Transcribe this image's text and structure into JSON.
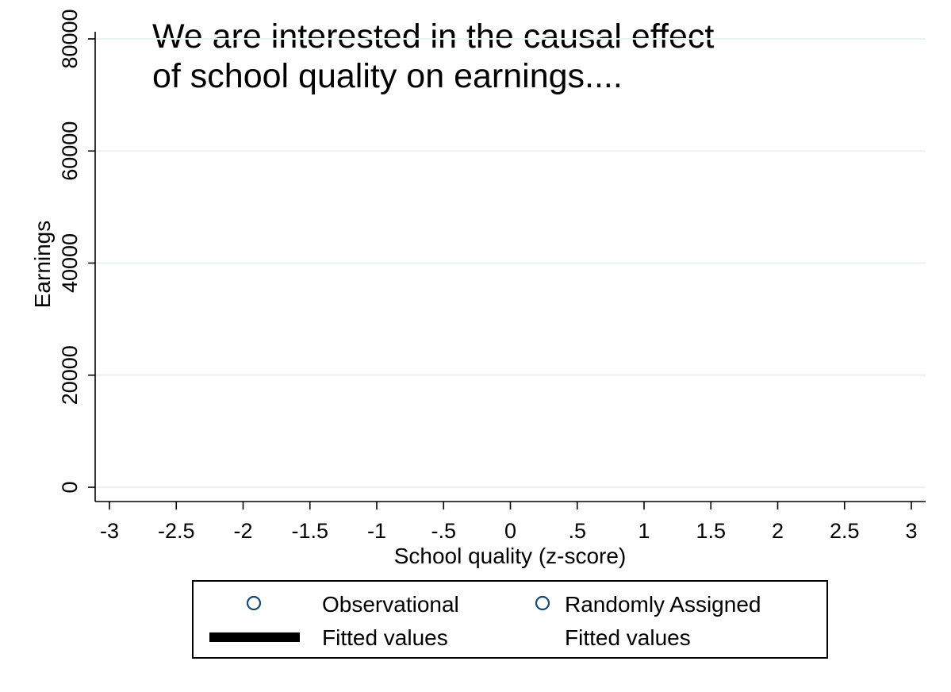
{
  "chart_data": {
    "type": "scatter",
    "title_lines": [
      "We are interested in the causal effect",
      "of school quality on earnings...."
    ],
    "xlabel": "School quality (z-score)",
    "ylabel": "Earnings",
    "xlim": [
      -3,
      3
    ],
    "ylim": [
      0,
      80000
    ],
    "xticks": [
      -3,
      -2.5,
      -2,
      -1.5,
      -1,
      -0.5,
      0,
      0.5,
      1,
      1.5,
      2,
      2.5,
      3
    ],
    "xtick_labels": [
      "-3",
      "-2.5",
      "-2",
      "-1.5",
      "-1",
      "-.5",
      "0",
      ".5",
      "1",
      "1.5",
      "2",
      "2.5",
      "3"
    ],
    "yticks": [
      0,
      20000,
      40000,
      60000,
      80000
    ],
    "ytick_labels": [
      "0",
      "20000",
      "40000",
      "60000",
      "80000"
    ],
    "grid": true,
    "series": [
      {
        "name": "Observational",
        "kind": "scatter",
        "marker": "hollow-circle",
        "color": "#1a476f",
        "points": []
      },
      {
        "name": "Randomly Assigned",
        "kind": "scatter",
        "marker": "hollow-circle",
        "color": "#1a476f",
        "points": []
      },
      {
        "name": "Fitted values",
        "kind": "line",
        "color": "#000000",
        "points": []
      },
      {
        "name": "Fitted values",
        "kind": "line",
        "color": "#ffffff",
        "points": []
      }
    ],
    "legend_position": "bottom"
  },
  "colors": {
    "grid": "#eaf2f3",
    "axis": "#000000",
    "marker": "#1a476f"
  }
}
